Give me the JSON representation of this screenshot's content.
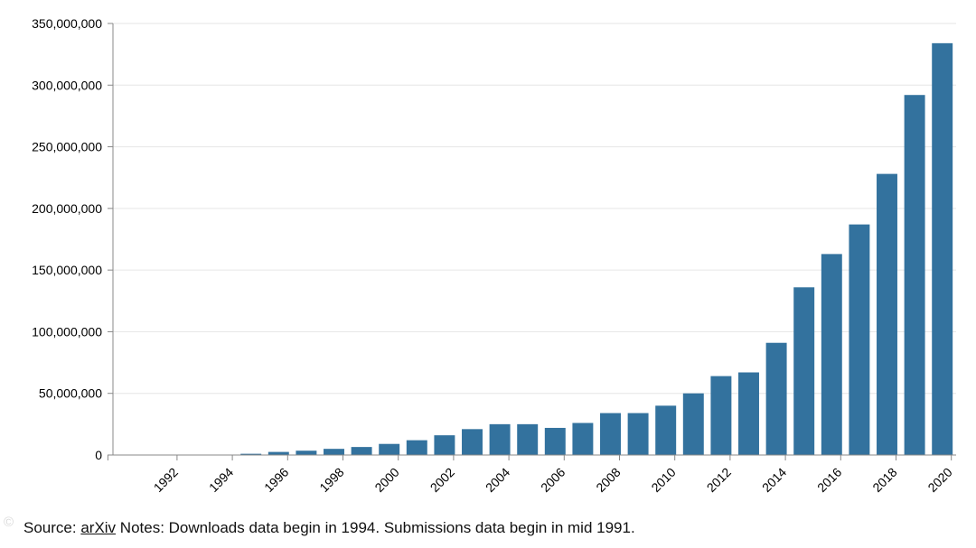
{
  "chart_data": {
    "type": "bar",
    "title": "",
    "xlabel": "",
    "ylabel": "",
    "categories": [
      "1991",
      "1992",
      "1993",
      "1994",
      "1995",
      "1996",
      "1997",
      "1998",
      "1999",
      "2000",
      "2001",
      "2002",
      "2003",
      "2004",
      "2005",
      "2006",
      "2007",
      "2008",
      "2009",
      "2010",
      "2011",
      "2012",
      "2013",
      "2014",
      "2015",
      "2016",
      "2017",
      "2018",
      "2019",
      "2020"
    ],
    "x_tick_labels": [
      "1992",
      "1994",
      "1996",
      "1998",
      "2000",
      "2002",
      "2004",
      "2006",
      "2008",
      "2010",
      "2012",
      "2014",
      "2016",
      "2018",
      "2020"
    ],
    "values": [
      0,
      0,
      0,
      0,
      1000000,
      2500000,
      3500000,
      5000000,
      6500000,
      9000000,
      12000000,
      16000000,
      21000000,
      25000000,
      25000000,
      22000000,
      26000000,
      34000000,
      34000000,
      40000000,
      50000000,
      64000000,
      67000000,
      91000000,
      136000000,
      163000000,
      187000000,
      228000000,
      292000000,
      334000000
    ],
    "ylim": [
      0,
      350000000
    ],
    "y_ticks": [
      0,
      50000000,
      100000000,
      150000000,
      200000000,
      250000000,
      300000000,
      350000000
    ],
    "y_tick_labels": [
      "0",
      "50,000,000",
      "100,000,000",
      "150,000,000",
      "200,000,000",
      "250,000,000",
      "300,000,000",
      "350,000,000"
    ],
    "grid": true,
    "legend": "none",
    "bar_color": "#33729e"
  },
  "footer": {
    "source_label": "Source:",
    "source_link": "arXiv",
    "notes": " Notes: Downloads data begin in 1994. Submissions data begin in mid 1991."
  },
  "watermark": "©"
}
